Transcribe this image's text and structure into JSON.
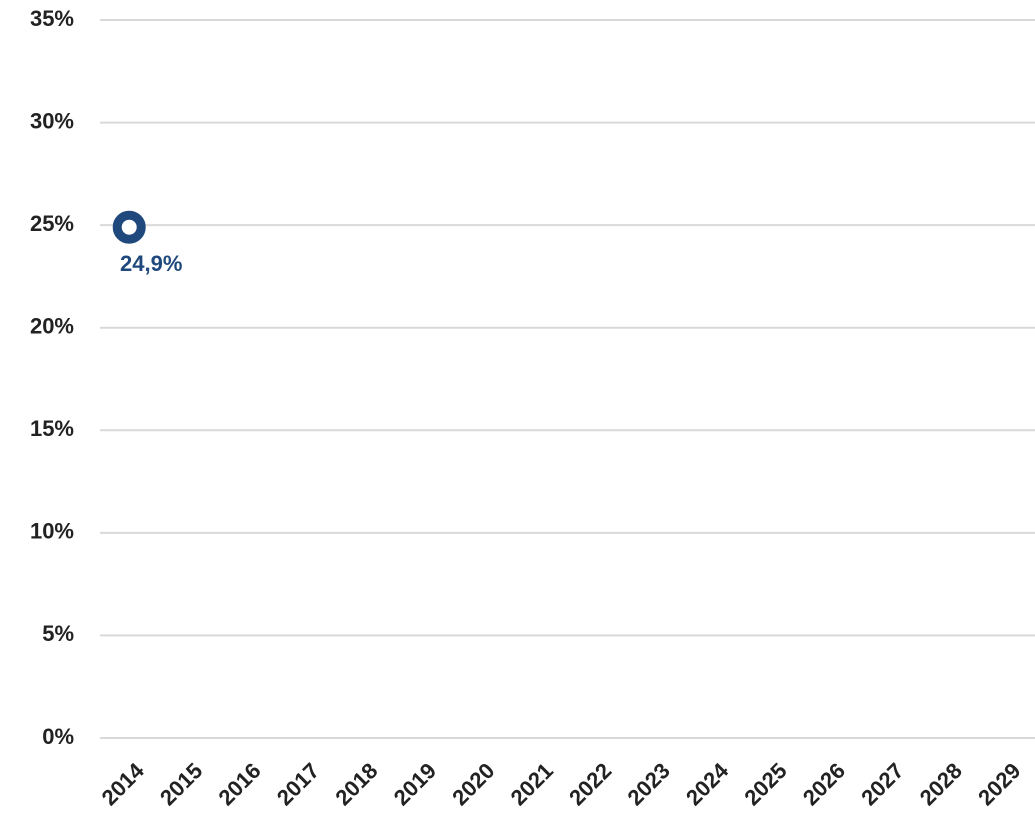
{
  "chart_data": {
    "type": "line",
    "categories": [
      "2014",
      "2015",
      "2016",
      "2017",
      "2018",
      "2019",
      "2020",
      "2021",
      "2022",
      "2023",
      "2024",
      "2025",
      "2026",
      "2027",
      "2028",
      "2029"
    ],
    "values": [
      24.9,
      null,
      null,
      null,
      null,
      null,
      null,
      null,
      null,
      null,
      null,
      null,
      null,
      null,
      null,
      null
    ],
    "value_labels": [
      "24,9%",
      null,
      null,
      null,
      null,
      null,
      null,
      null,
      null,
      null,
      null,
      null,
      null,
      null,
      null,
      null
    ],
    "color": "#1f497d",
    "ylim": [
      0,
      35
    ],
    "yticks": [
      {
        "value": 0,
        "label": "0%"
      },
      {
        "value": 5,
        "label": "5%"
      },
      {
        "value": 10,
        "label": "10%"
      },
      {
        "value": 15,
        "label": "15%"
      },
      {
        "value": 20,
        "label": "20%"
      },
      {
        "value": 25,
        "label": "25%"
      },
      {
        "value": 30,
        "label": "30%"
      },
      {
        "value": 35,
        "label": "35%"
      }
    ],
    "grid": true
  }
}
